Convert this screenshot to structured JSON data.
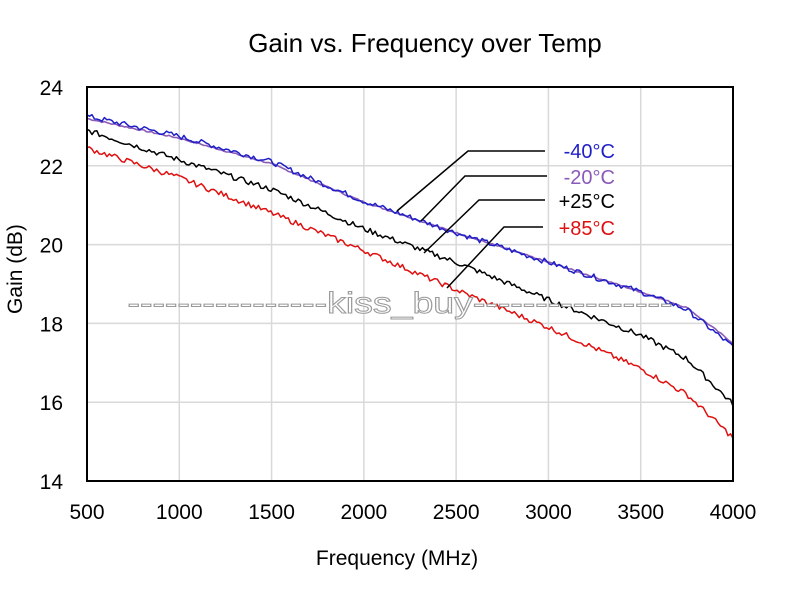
{
  "chart_data": {
    "type": "line",
    "title": "Gain vs. Frequency over Temp",
    "xlabel": "Frequency (MHz)",
    "ylabel": "Gain (dB)",
    "xlim": [
      500,
      4000
    ],
    "ylim": [
      14,
      24
    ],
    "xticks": [
      500,
      1000,
      1500,
      2000,
      2500,
      3000,
      3500,
      4000
    ],
    "yticks": [
      14,
      16,
      18,
      20,
      22,
      24
    ],
    "xtick_labels": [
      "500",
      "1000",
      "1500",
      "2000",
      "2500",
      "3000",
      "3500",
      "4000"
    ],
    "ytick_labels": [
      "14",
      "16",
      "18",
      "20",
      "22",
      "24"
    ],
    "grid": true,
    "legend_placement": "top-right (callout labels)",
    "series": [
      {
        "name": "-40°C",
        "color": "#1f1fc8",
        "x": [
          500,
          1000,
          1500,
          2000,
          2500,
          3000,
          3500,
          3750,
          4000
        ],
        "y": [
          23.26,
          22.75,
          22.1,
          21.1,
          20.3,
          19.55,
          18.8,
          18.35,
          17.4
        ]
      },
      {
        "name": "-20°C",
        "color": "#8a5ab8",
        "x": [
          500,
          1000,
          1500,
          2000,
          2500,
          3000,
          3500,
          3750,
          4000
        ],
        "y": [
          23.2,
          22.7,
          22.05,
          21.08,
          20.3,
          19.55,
          18.8,
          18.4,
          17.5
        ]
      },
      {
        "name": "+25°C",
        "color": "#000000",
        "x": [
          500,
          1000,
          1500,
          2000,
          2500,
          3000,
          3500,
          3750,
          4000
        ],
        "y": [
          22.9,
          22.15,
          21.4,
          20.4,
          19.55,
          18.6,
          17.7,
          17.1,
          15.95
        ]
      },
      {
        "name": "+85°C",
        "color": "#e01010",
        "x": [
          500,
          1000,
          1500,
          2000,
          2500,
          3000,
          3500,
          3750,
          4000
        ],
        "y": [
          22.45,
          21.7,
          20.8,
          19.85,
          18.85,
          17.9,
          16.85,
          16.2,
          15.1
        ]
      }
    ],
    "annotations": [
      {
        "text": "-40°C",
        "color": "#1f1fc8"
      },
      {
        "text": "-20°C",
        "color": "#8a5ab8"
      },
      {
        "text": "+25°C",
        "color": "#000000"
      },
      {
        "text": "+85°C",
        "color": "#e01010"
      }
    ],
    "watermark": "----------------kiss_buy----------------"
  }
}
